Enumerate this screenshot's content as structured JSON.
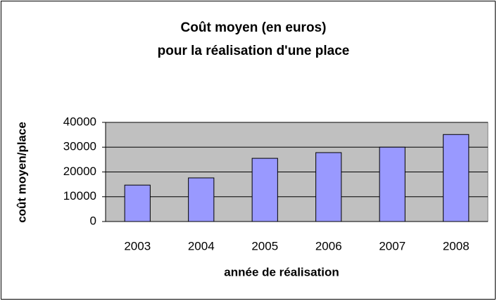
{
  "chart_data": {
    "type": "bar",
    "title": [
      "Coût moyen (en euros)",
      "pour la réalisation d'une place"
    ],
    "x_label": "année de réalisation",
    "y_label": "coût moyen/place",
    "categories": [
      "2003",
      "2004",
      "2005",
      "2006",
      "2007",
      "2008"
    ],
    "values": [
      14700,
      17600,
      25500,
      27800,
      30000,
      35100
    ],
    "color": "#9999ff",
    "ylim": [
      0,
      40000
    ],
    "yticks": [
      0,
      10000,
      20000,
      30000,
      40000
    ],
    "grid": true
  }
}
